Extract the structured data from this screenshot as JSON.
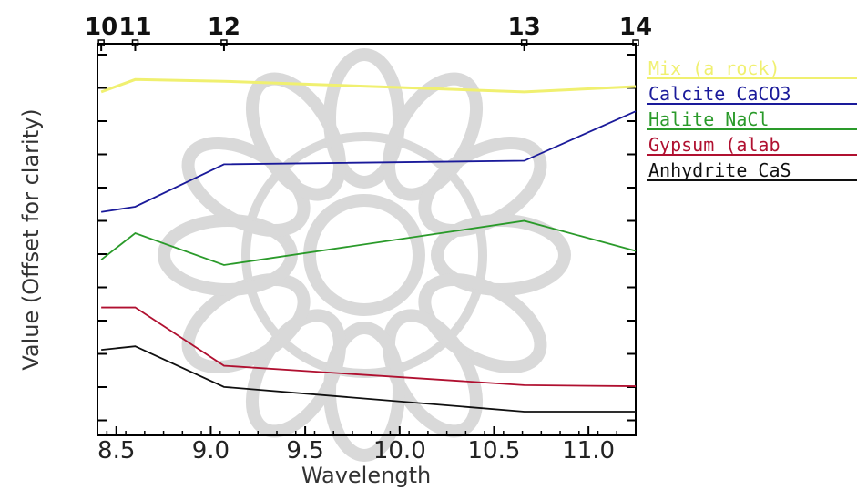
{
  "chart_data": {
    "type": "line",
    "xlabel": "Wavelength",
    "ylabel": "Value (Offset for clarity)",
    "xlim": [
      8.4,
      11.25
    ],
    "ylim": [
      0,
      1
    ],
    "x_ticks": [
      "8.5",
      "9.0",
      "9.5",
      "10.0",
      "10.5",
      "11.0"
    ],
    "x_tick_values": [
      8.5,
      9.0,
      9.5,
      10.0,
      10.5,
      11.0
    ],
    "grid": false,
    "legend_position": "right",
    "band_labels": [
      {
        "label": "10",
        "x": 8.42
      },
      {
        "label": "11",
        "x": 8.6
      },
      {
        "label": "12",
        "x": 9.07
      },
      {
        "label": "13",
        "x": 10.66
      },
      {
        "label": "14",
        "x": 11.25
      }
    ],
    "series": [
      {
        "name": "Mix (a rock)",
        "color": "#f0f070",
        "x": [
          8.42,
          8.6,
          9.07,
          10.66,
          11.25
        ],
        "y": [
          0.905,
          0.94,
          0.935,
          0.905,
          0.92
        ]
      },
      {
        "name": "Calcite CaCO3",
        "color": "#1a1a9a",
        "x": [
          8.42,
          8.6,
          9.07,
          10.66,
          11.25
        ],
        "y": [
          0.565,
          0.58,
          0.7,
          0.71,
          0.85
        ]
      },
      {
        "name": "Halite NaCl",
        "color": "#2a9a2a",
        "x": [
          8.42,
          8.6,
          9.07,
          10.66,
          11.25
        ],
        "y": [
          0.43,
          0.505,
          0.415,
          0.54,
          0.455
        ]
      },
      {
        "name": "Gypsum (alab",
        "color": "#b01030",
        "x": [
          8.42,
          8.6,
          9.07,
          10.66,
          11.25
        ],
        "y": [
          0.295,
          0.295,
          0.13,
          0.075,
          0.072
        ]
      },
      {
        "name": "Anhydrite CaS",
        "color": "#101010",
        "x": [
          8.42,
          8.6,
          9.07,
          10.66,
          11.25
        ],
        "y": [
          0.175,
          0.185,
          0.07,
          0.0,
          0.0
        ]
      }
    ]
  }
}
